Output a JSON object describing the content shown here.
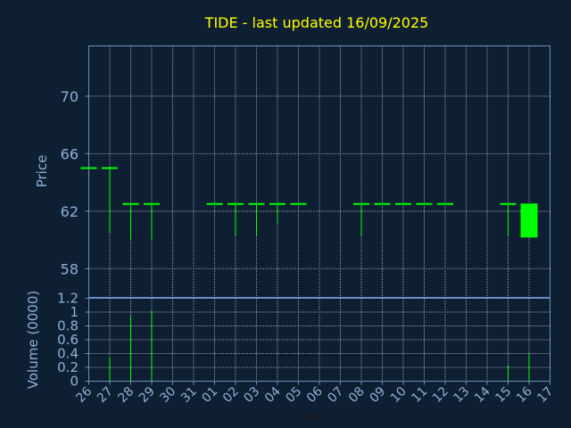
{
  "chart_data": [
    {
      "type": "candlestick",
      "title": "TIDE - last updated 16/09/2025",
      "ylabel": "Price",
      "ylim": [
        56,
        73.5
      ],
      "yticks": [
        58,
        62,
        66,
        70
      ],
      "grid": true,
      "xtick_labels": [
        "26",
        "27",
        "28",
        "29",
        "30",
        "31",
        "01",
        "02",
        "03",
        "04",
        "05",
        "06",
        "07",
        "08",
        "09",
        "10",
        "11",
        "12",
        "13",
        "14",
        "15",
        "16",
        "17"
      ],
      "candles": [
        {
          "x": 0,
          "open": 65,
          "close": 65,
          "high": 65,
          "low": 65
        },
        {
          "x": 1,
          "open": 65,
          "close": 65,
          "high": 65,
          "low": 60.5
        },
        {
          "x": 2,
          "open": 62.5,
          "close": 62.5,
          "high": 62.5,
          "low": 60
        },
        {
          "x": 3,
          "open": 62.5,
          "close": 62.5,
          "high": 62.5,
          "low": 60
        },
        {
          "x": 6,
          "open": 62.5,
          "close": 62.5,
          "high": 62.5,
          "low": 62.5
        },
        {
          "x": 7,
          "open": 62.5,
          "close": 62.5,
          "high": 62.5,
          "low": 60.3
        },
        {
          "x": 8,
          "open": 62.5,
          "close": 62.5,
          "high": 62.5,
          "low": 60.3
        },
        {
          "x": 9,
          "open": 62.5,
          "close": 62.5,
          "high": 62.5,
          "low": 61.2
        },
        {
          "x": 10,
          "open": 62.5,
          "close": 62.5,
          "high": 62.5,
          "low": 62.5
        },
        {
          "x": 13,
          "open": 62.5,
          "close": 62.5,
          "high": 62.5,
          "low": 60.3
        },
        {
          "x": 14,
          "open": 62.5,
          "close": 62.5,
          "high": 62.5,
          "low": 62.5
        },
        {
          "x": 15,
          "open": 62.5,
          "close": 62.5,
          "high": 62.5,
          "low": 62.5
        },
        {
          "x": 16,
          "open": 62.5,
          "close": 62.5,
          "high": 62.5,
          "low": 62.5
        },
        {
          "x": 17,
          "open": 62.5,
          "close": 62.5,
          "high": 62.5,
          "low": 62.5
        },
        {
          "x": 20,
          "open": 62.5,
          "close": 62.5,
          "high": 62.5,
          "low": 60.3
        },
        {
          "x": 21,
          "open": 62.5,
          "close": 60.2,
          "high": 62.5,
          "low": 60.2
        }
      ],
      "colors": {
        "candle": "#00ff00",
        "background": "#0f1f33",
        "axis": "#6a8fbf",
        "text": "#8fb0d8",
        "title": "#ffff00",
        "grid": "#c8d4e2"
      }
    },
    {
      "type": "bar",
      "ylabel": "Volume (0000)",
      "xlabel": "Day",
      "ylim": [
        0,
        1.2
      ],
      "yticks": [
        0,
        0.2,
        0.4,
        0.6,
        0.8,
        1,
        1.2
      ],
      "grid": true,
      "volumes": [
        {
          "x": 1,
          "value": 0.35
        },
        {
          "x": 2,
          "value": 0.95
        },
        {
          "x": 3,
          "value": 1.02
        },
        {
          "x": 20,
          "value": 0.22
        },
        {
          "x": 21,
          "value": 0.4
        }
      ]
    }
  ]
}
